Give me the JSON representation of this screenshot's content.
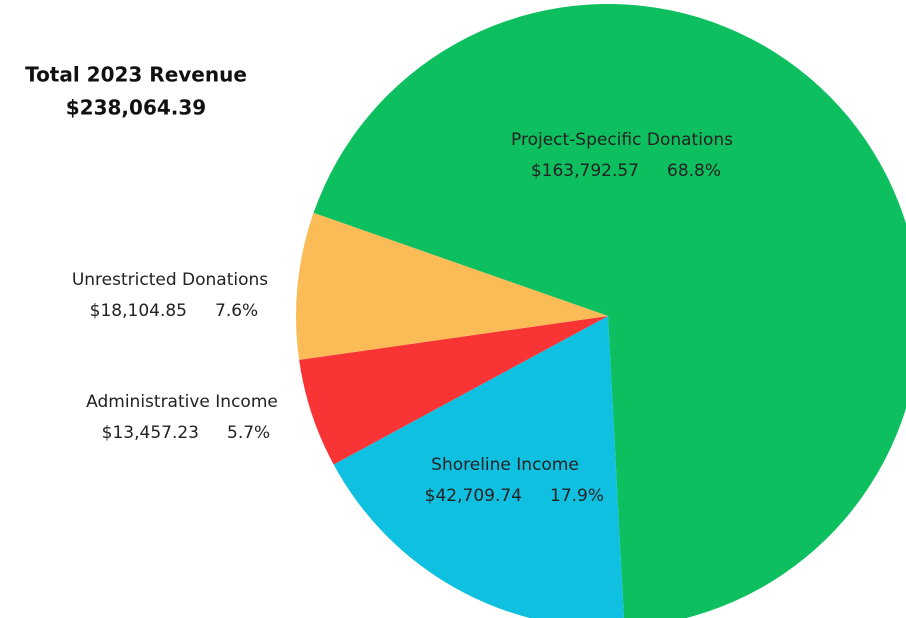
{
  "chart_data": {
    "type": "pie",
    "title": "Total 2023 Revenue",
    "subtitle": "$238,064.39",
    "categories": [
      "Project-Specific Donations",
      "Shoreline Income",
      "Administrative Income",
      "Unrestricted Donations"
    ],
    "values": [
      163792.57,
      42709.74,
      13457.23,
      18104.85
    ],
    "value_labels": [
      "$163,792.57",
      "$42,709.74",
      "$13,457.23",
      "$18,104.85"
    ],
    "percent_labels": [
      "68.8%",
      "17.9%",
      "5.7%",
      "7.6%"
    ],
    "colors": [
      "#0dbf5e",
      "#0fc0e0",
      "#f83434",
      "#fbbc58"
    ]
  }
}
